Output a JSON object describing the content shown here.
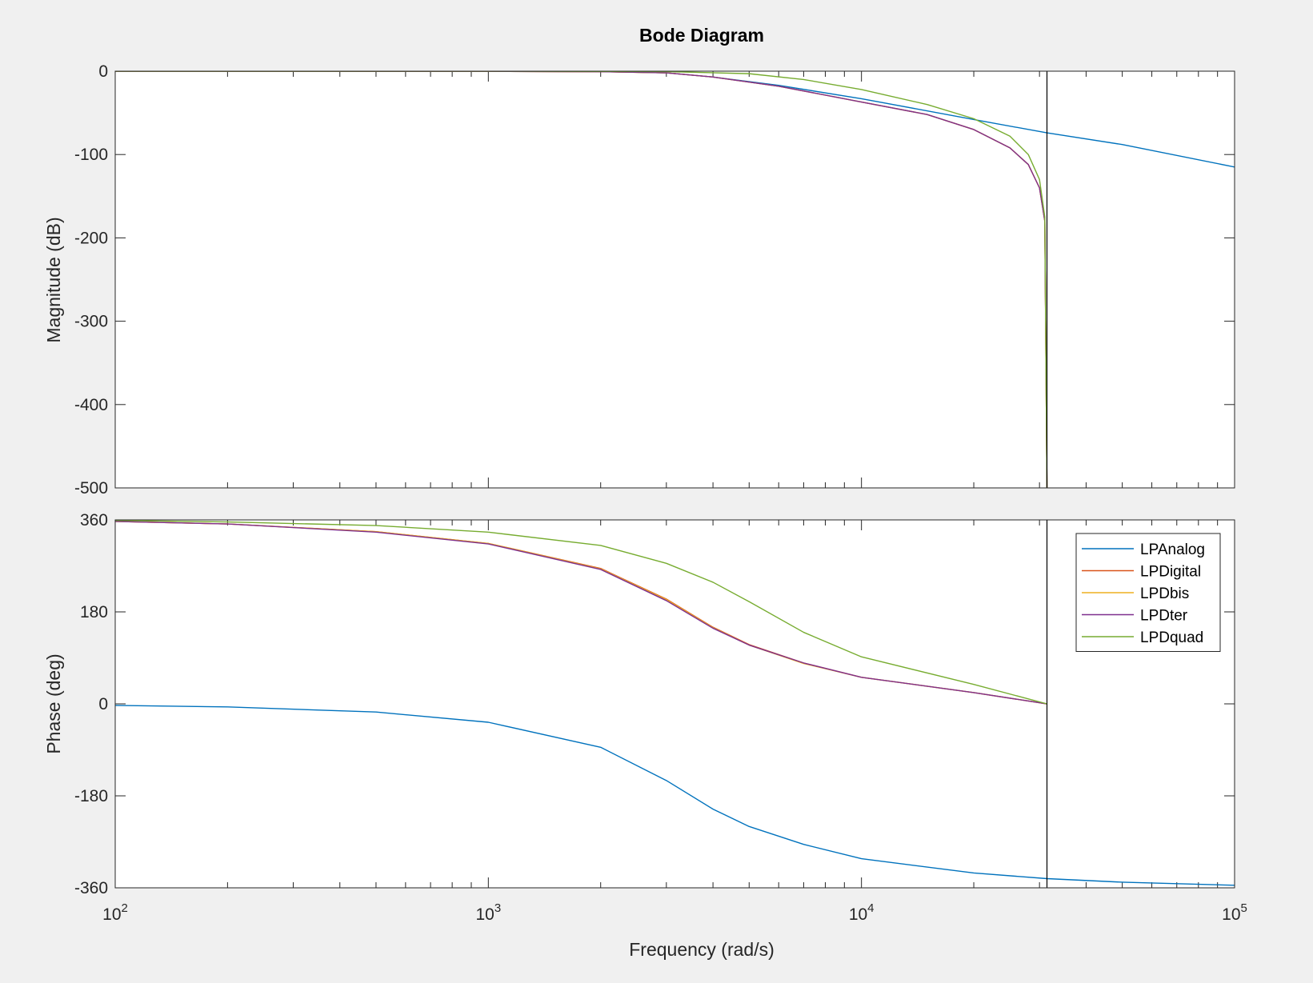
{
  "figure": {
    "title": "Bode Diagram",
    "xlabel": "Frequency  (rad/s)",
    "colors": {
      "background": "#f0f0f0",
      "axes_face": "#ffffff",
      "axes_edge": "#262626",
      "marker_line": "#000000"
    }
  },
  "chart_data": [
    {
      "type": "line",
      "panel": "magnitude",
      "title": "Bode Diagram",
      "xlabel": "",
      "ylabel": "Magnitude (dB)",
      "xscale": "log",
      "xlim": [
        100,
        100000
      ],
      "ylim": [
        -500,
        0
      ],
      "yticks": [
        0,
        -100,
        -200,
        -300,
        -400,
        -500
      ],
      "vertical_marker_x": 31416,
      "series": [
        {
          "name": "LPAnalog",
          "color": "#0072BD",
          "x": [
            100,
            1000,
            2000,
            3000,
            4000,
            6000,
            10000,
            20000,
            31416,
            50000,
            100000
          ],
          "y": [
            0,
            -0.2,
            -0.5,
            -2,
            -7,
            -17,
            -33,
            -58,
            -74,
            -88,
            -115
          ]
        },
        {
          "name": "LPDigital",
          "color": "#D95319",
          "x": [
            100,
            1000,
            2000,
            3000,
            4000,
            6000,
            10000,
            15000,
            20000,
            25000,
            28000,
            30000,
            31000,
            31416
          ],
          "y": [
            0,
            -0.2,
            -0.6,
            -2,
            -7,
            -18,
            -37,
            -52,
            -70,
            -92,
            -112,
            -140,
            -180,
            -500
          ]
        },
        {
          "name": "LPDbis",
          "color": "#EDB120",
          "x": [
            100,
            1000,
            2000,
            3000,
            4000,
            6000,
            10000,
            15000,
            20000,
            25000,
            28000,
            30000,
            31000,
            31416
          ],
          "y": [
            0,
            -0.2,
            -0.6,
            -2,
            -7,
            -18,
            -37,
            -52,
            -70,
            -92,
            -112,
            -140,
            -180,
            -500
          ]
        },
        {
          "name": "LPDter",
          "color": "#7E2F8E",
          "x": [
            100,
            1000,
            2000,
            3000,
            4000,
            6000,
            10000,
            15000,
            20000,
            25000,
            28000,
            30000,
            31000,
            31416
          ],
          "y": [
            0,
            -0.2,
            -0.6,
            -2,
            -7,
            -18,
            -37,
            -52,
            -70,
            -92,
            -112,
            -140,
            -180,
            -500
          ]
        },
        {
          "name": "LPDquad",
          "color": "#77AC30",
          "x": [
            100,
            1000,
            3000,
            5000,
            7000,
            10000,
            15000,
            20000,
            25000,
            28000,
            30000,
            31000,
            31416
          ],
          "y": [
            0,
            0,
            -0.5,
            -3,
            -10,
            -22,
            -40,
            -57,
            -78,
            -100,
            -130,
            -175,
            -500
          ]
        }
      ]
    },
    {
      "type": "line",
      "panel": "phase",
      "title": "",
      "xlabel": "Frequency  (rad/s)",
      "ylabel": "Phase (deg)",
      "xscale": "log",
      "xlim": [
        100,
        100000
      ],
      "ylim": [
        -360,
        360
      ],
      "yticks": [
        360,
        180,
        0,
        -180,
        -360
      ],
      "vertical_marker_x": 31416,
      "legend_position": "top-right",
      "series": [
        {
          "name": "LPAnalog",
          "color": "#0072BD",
          "x": [
            100,
            200,
            500,
            1000,
            2000,
            3000,
            4000,
            5000,
            7000,
            10000,
            20000,
            31416,
            50000,
            100000
          ],
          "y": [
            -3,
            -6,
            -16,
            -36,
            -85,
            -150,
            -206,
            -240,
            -275,
            -303,
            -331,
            -342,
            -349,
            -355
          ]
        },
        {
          "name": "LPDigital",
          "color": "#D95319",
          "x": [
            100,
            200,
            500,
            1000,
            2000,
            3000,
            4000,
            5000,
            7000,
            10000,
            20000,
            31416
          ],
          "y": [
            357,
            352,
            337,
            314,
            265,
            205,
            150,
            116,
            80,
            52,
            22,
            0
          ]
        },
        {
          "name": "LPDbis",
          "color": "#EDB120",
          "x": [
            100,
            200,
            500,
            1000,
            2000,
            3000,
            4000,
            5000,
            7000,
            10000,
            20000,
            31416
          ],
          "y": [
            357,
            352,
            337,
            314,
            264,
            204,
            149,
            115,
            79,
            52,
            22,
            0
          ]
        },
        {
          "name": "LPDter",
          "color": "#7E2F8E",
          "x": [
            100,
            200,
            500,
            1000,
            2000,
            3000,
            4000,
            5000,
            7000,
            10000,
            20000,
            31416
          ],
          "y": [
            357,
            352,
            336,
            313,
            263,
            202,
            148,
            115,
            80,
            52,
            22,
            0
          ]
        },
        {
          "name": "LPDquad",
          "color": "#77AC30",
          "x": [
            100,
            200,
            500,
            1000,
            2000,
            3000,
            4000,
            5000,
            7000,
            10000,
            20000,
            31416
          ],
          "y": [
            359,
            356,
            349,
            336,
            310,
            275,
            238,
            200,
            140,
            92,
            38,
            0
          ]
        }
      ]
    }
  ],
  "x_ticks": [
    {
      "base": "10",
      "exp": "2"
    },
    {
      "base": "10",
      "exp": "3"
    },
    {
      "base": "10",
      "exp": "4"
    },
    {
      "base": "10",
      "exp": "5"
    }
  ],
  "legend": {
    "entries": [
      "LPAnalog",
      "LPDigital",
      "LPDbis",
      "LPDter",
      "LPDquad"
    ]
  }
}
